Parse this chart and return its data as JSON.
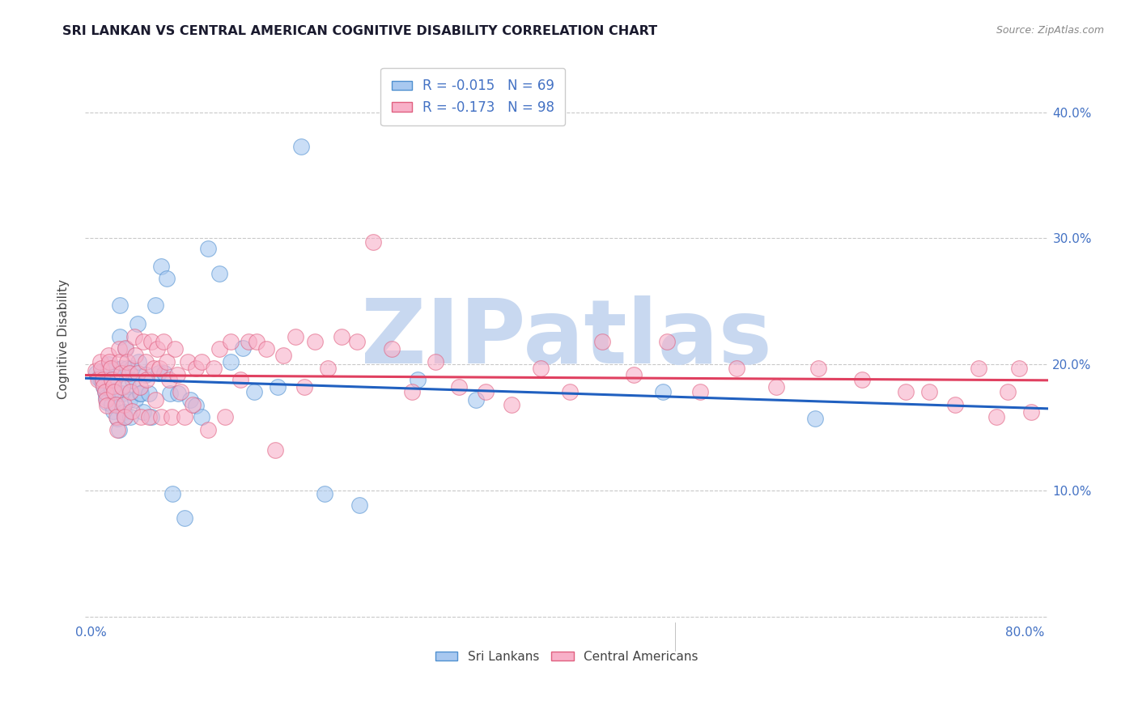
{
  "title": "SRI LANKAN VS CENTRAL AMERICAN COGNITIVE DISABILITY CORRELATION CHART",
  "source": "Source: ZipAtlas.com",
  "ylabel": "Cognitive Disability",
  "xlim": [
    -0.005,
    0.82
  ],
  "ylim": [
    -0.005,
    0.445
  ],
  "xticks": [
    0.0,
    0.1,
    0.2,
    0.3,
    0.4,
    0.5,
    0.6,
    0.7,
    0.8
  ],
  "xticklabels": [
    "0.0%",
    "",
    "",
    "",
    "",
    "",
    "",
    "",
    "80.0%"
  ],
  "yticks": [
    0.0,
    0.1,
    0.2,
    0.3,
    0.4
  ],
  "yticklabels": [
    "",
    "10.0%",
    "20.0%",
    "30.0%",
    "40.0%"
  ],
  "sri_lankan_R": -0.015,
  "sri_lankan_N": 69,
  "central_american_R": -0.173,
  "central_american_N": 98,
  "blue_fill": "#A8C8F0",
  "blue_edge": "#5090D0",
  "pink_fill": "#F8B0C8",
  "pink_edge": "#E06080",
  "blue_line_color": "#2060C0",
  "pink_line_color": "#E04060",
  "title_color": "#1a1a2e",
  "axis_label_color": "#444444",
  "tick_color": "#4472C4",
  "grid_color": "#BBBBBB",
  "watermark_color": "#C8D8F0",
  "watermark_text": "ZIPatlas",
  "legend_label_blue": "Sri Lankans",
  "legend_label_pink": "Central Americans",
  "sri_lankans_x": [
    0.005,
    0.007,
    0.009,
    0.01,
    0.01,
    0.011,
    0.012,
    0.013,
    0.014,
    0.015,
    0.015,
    0.016,
    0.017,
    0.018,
    0.018,
    0.019,
    0.02,
    0.02,
    0.021,
    0.022,
    0.023,
    0.024,
    0.025,
    0.025,
    0.026,
    0.027,
    0.028,
    0.029,
    0.03,
    0.031,
    0.032,
    0.033,
    0.034,
    0.035,
    0.036,
    0.038,
    0.04,
    0.041,
    0.042,
    0.043,
    0.045,
    0.047,
    0.05,
    0.052,
    0.055,
    0.058,
    0.06,
    0.063,
    0.065,
    0.068,
    0.07,
    0.075,
    0.08,
    0.085,
    0.09,
    0.095,
    0.1,
    0.11,
    0.12,
    0.13,
    0.14,
    0.16,
    0.18,
    0.2,
    0.23,
    0.28,
    0.33,
    0.49,
    0.62
  ],
  "sri_lankans_y": [
    0.193,
    0.189,
    0.187,
    0.195,
    0.185,
    0.182,
    0.178,
    0.174,
    0.17,
    0.2,
    0.196,
    0.188,
    0.183,
    0.179,
    0.168,
    0.163,
    0.197,
    0.188,
    0.177,
    0.168,
    0.157,
    0.148,
    0.247,
    0.222,
    0.197,
    0.177,
    0.162,
    0.158,
    0.212,
    0.197,
    0.183,
    0.172,
    0.158,
    0.197,
    0.187,
    0.172,
    0.232,
    0.202,
    0.177,
    0.177,
    0.162,
    0.192,
    0.177,
    0.158,
    0.247,
    0.193,
    0.278,
    0.193,
    0.268,
    0.177,
    0.097,
    0.177,
    0.078,
    0.172,
    0.167,
    0.158,
    0.292,
    0.272,
    0.202,
    0.213,
    0.178,
    0.182,
    0.373,
    0.097,
    0.088,
    0.188,
    0.172,
    0.178,
    0.157
  ],
  "central_americans_x": [
    0.004,
    0.006,
    0.008,
    0.009,
    0.01,
    0.011,
    0.012,
    0.013,
    0.014,
    0.015,
    0.016,
    0.017,
    0.018,
    0.019,
    0.02,
    0.021,
    0.022,
    0.023,
    0.024,
    0.025,
    0.026,
    0.027,
    0.028,
    0.029,
    0.03,
    0.031,
    0.033,
    0.034,
    0.035,
    0.037,
    0.038,
    0.04,
    0.042,
    0.043,
    0.045,
    0.047,
    0.048,
    0.05,
    0.052,
    0.054,
    0.055,
    0.057,
    0.059,
    0.06,
    0.062,
    0.065,
    0.067,
    0.069,
    0.072,
    0.074,
    0.077,
    0.08,
    0.083,
    0.087,
    0.09,
    0.095,
    0.1,
    0.105,
    0.11,
    0.115,
    0.12,
    0.128,
    0.135,
    0.142,
    0.15,
    0.158,
    0.165,
    0.175,
    0.183,
    0.192,
    0.203,
    0.215,
    0.228,
    0.242,
    0.258,
    0.275,
    0.295,
    0.315,
    0.338,
    0.36,
    0.385,
    0.41,
    0.438,
    0.465,
    0.493,
    0.522,
    0.553,
    0.587,
    0.623,
    0.66,
    0.698,
    0.718,
    0.74,
    0.76,
    0.775,
    0.785,
    0.795,
    0.805
  ],
  "central_americans_y": [
    0.195,
    0.188,
    0.202,
    0.197,
    0.188,
    0.183,
    0.178,
    0.172,
    0.167,
    0.207,
    0.202,
    0.197,
    0.188,
    0.183,
    0.178,
    0.168,
    0.158,
    0.148,
    0.212,
    0.202,
    0.193,
    0.182,
    0.168,
    0.158,
    0.213,
    0.202,
    0.193,
    0.178,
    0.163,
    0.222,
    0.207,
    0.193,
    0.182,
    0.158,
    0.218,
    0.202,
    0.188,
    0.158,
    0.218,
    0.197,
    0.172,
    0.212,
    0.197,
    0.158,
    0.218,
    0.202,
    0.188,
    0.158,
    0.212,
    0.192,
    0.178,
    0.158,
    0.202,
    0.168,
    0.197,
    0.202,
    0.148,
    0.197,
    0.212,
    0.158,
    0.218,
    0.188,
    0.218,
    0.218,
    0.212,
    0.132,
    0.207,
    0.222,
    0.182,
    0.218,
    0.197,
    0.222,
    0.218,
    0.297,
    0.212,
    0.178,
    0.202,
    0.182,
    0.178,
    0.168,
    0.197,
    0.178,
    0.218,
    0.192,
    0.218,
    0.178,
    0.197,
    0.182,
    0.197,
    0.188,
    0.178,
    0.178,
    0.168,
    0.197,
    0.158,
    0.178,
    0.197,
    0.162
  ]
}
